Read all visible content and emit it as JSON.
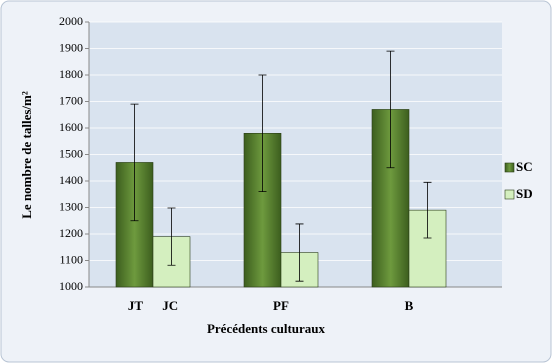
{
  "chart_data": {
    "type": "bar",
    "y_label": "Le nombre de talles/m²",
    "x_label": "Précédents culturaux",
    "categories": [
      "JT      JC",
      "PF",
      "B"
    ],
    "series": [
      {
        "name": "SC",
        "color": "#4f7a28",
        "values": [
          1470,
          1580,
          1670
        ],
        "errors": [
          220,
          220,
          220
        ]
      },
      {
        "name": "SD",
        "color": "#d4efbf",
        "values": [
          1190,
          1130,
          1290
        ],
        "errors": [
          108,
          108,
          105
        ]
      }
    ],
    "ylim": [
      1000,
      2000
    ],
    "yticks": [
      1000,
      1100,
      1200,
      1300,
      1400,
      1500,
      1600,
      1700,
      1800,
      1900,
      2000
    ],
    "grid": true,
    "legend": "right"
  }
}
